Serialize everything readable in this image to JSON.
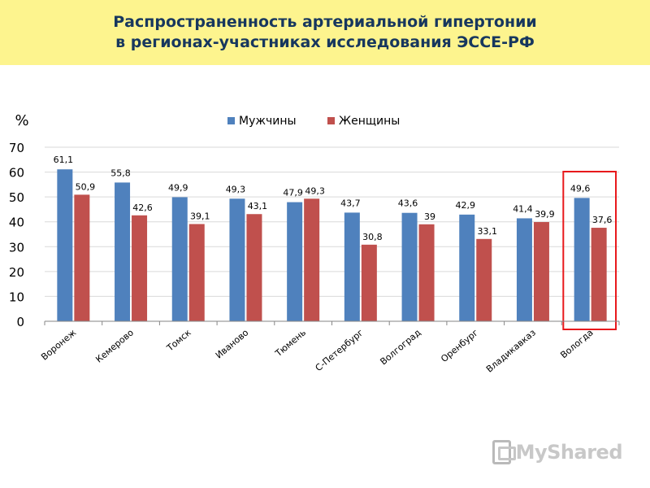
{
  "slide": {
    "title_line1": "Распространенность артериальной гипертонии",
    "title_line2": "в регионах-участниках исследования ЭССЕ-РФ",
    "watermark": "MyShared"
  },
  "colors": {
    "male": "#4f81bd",
    "female": "#c0504d",
    "highlight": "#e8191c",
    "banner": "#fdf48e",
    "title": "#17375e"
  },
  "chart_data": {
    "type": "bar",
    "title": "",
    "ylabel": "%",
    "xlabel": "",
    "ylim": [
      0,
      70
    ],
    "yticks": [
      0,
      10,
      20,
      30,
      40,
      50,
      60,
      70
    ],
    "grid": true,
    "legend_position": "top",
    "categories": [
      "Воронеж",
      "Кемерово",
      "Томск",
      "Иваново",
      "Тюмень",
      "С-Петербург",
      "Волгоград",
      "Оренбург",
      "Владикавказ",
      "Вологда"
    ],
    "series": [
      {
        "name": "Мужчины",
        "values": [
          61.1,
          55.8,
          49.9,
          49.3,
          47.9,
          43.7,
          43.6,
          42.9,
          41.4,
          49.6
        ],
        "labels": [
          "61,1",
          "55,8",
          "49,9",
          "49,3",
          "47,9",
          "43,7",
          "43,6",
          "42,9",
          "41,4",
          "49,6"
        ]
      },
      {
        "name": "Женщины",
        "values": [
          50.9,
          42.6,
          39.1,
          43.1,
          49.3,
          30.8,
          39,
          33.1,
          39.9,
          37.6
        ],
        "labels": [
          "50,9",
          "42,6",
          "39,1",
          "43,1",
          "49,3",
          "30,8",
          "39",
          "33,1",
          "39,9",
          "37,6"
        ]
      }
    ],
    "highlighted_category": "Вологда"
  }
}
